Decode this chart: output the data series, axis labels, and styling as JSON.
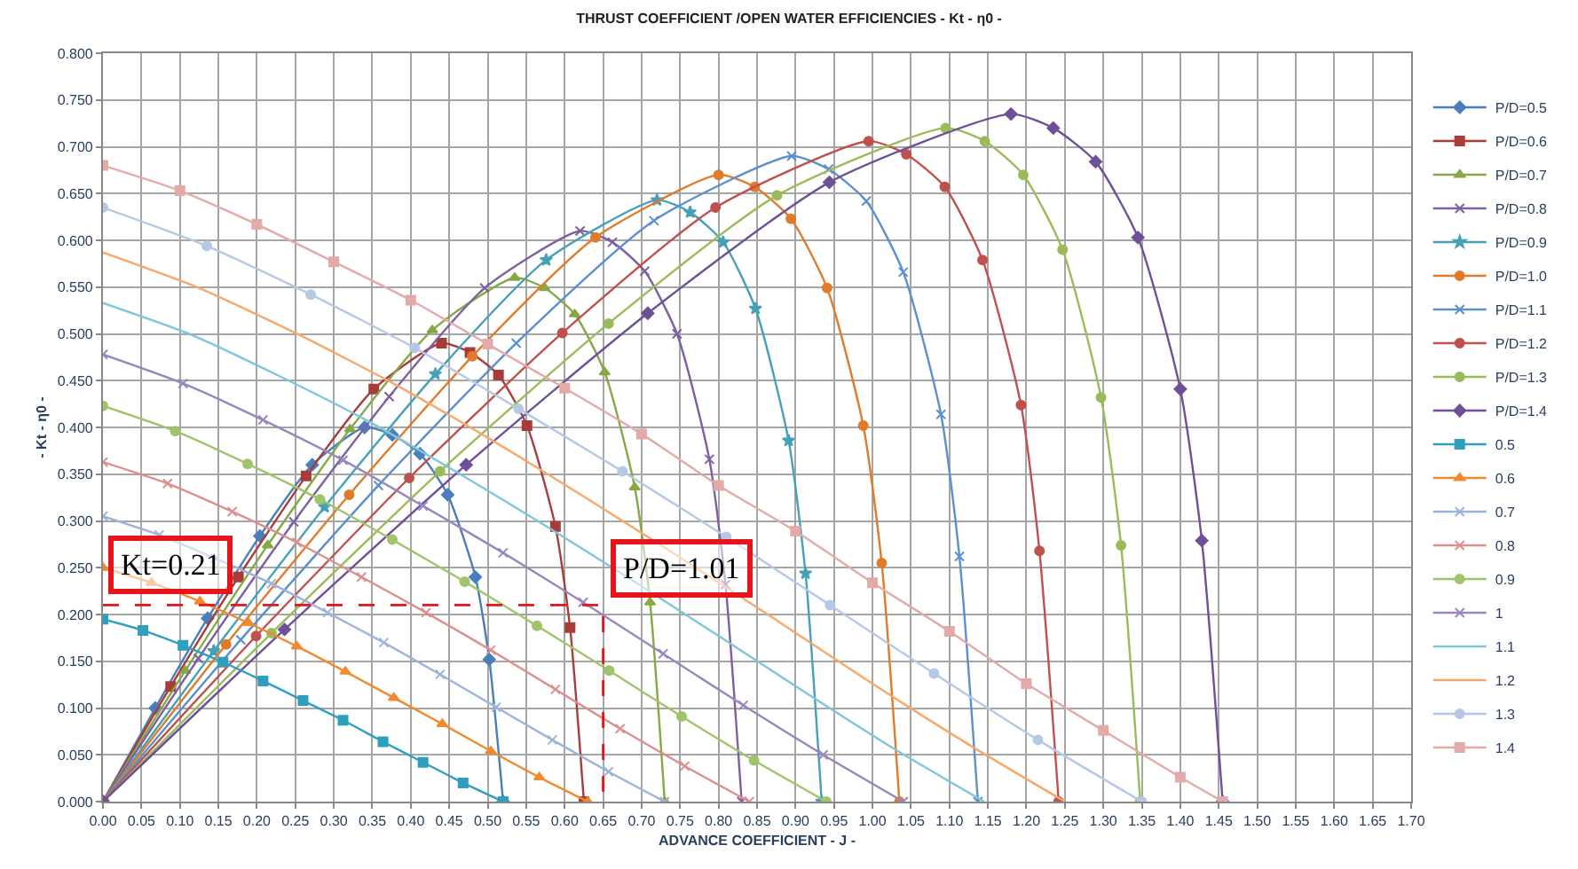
{
  "chart_data": {
    "type": "line",
    "title": "THRUST COEFFICIENT /OPEN WATER EFFICIENCIES - Kt - η0 -",
    "xlabel": "ADVANCE COEFFICIENT - J -",
    "ylabel": "- Kt - η0 -",
    "xlim": [
      0,
      1.7
    ],
    "ylim": [
      0,
      0.8
    ],
    "grid": true,
    "legend": "right",
    "xticks": [
      {
        "value": 0,
        "label": "0.00"
      },
      {
        "value": 0.05,
        "label": "0.05"
      },
      {
        "value": 0.1,
        "label": "0.10"
      },
      {
        "value": 0.15,
        "label": "0.15"
      },
      {
        "value": 0.2,
        "label": "0.20"
      },
      {
        "value": 0.25,
        "label": "0.25"
      },
      {
        "value": 0.3,
        "label": "0.30"
      },
      {
        "value": 0.35,
        "label": "0.35"
      },
      {
        "value": 0.4,
        "label": "0.40"
      },
      {
        "value": 0.45,
        "label": "0.45"
      },
      {
        "value": 0.5,
        "label": "0.50"
      },
      {
        "value": 0.55,
        "label": "0.55"
      },
      {
        "value": 0.6,
        "label": "0.60"
      },
      {
        "value": 0.65,
        "label": "0.65"
      },
      {
        "value": 0.7,
        "label": "0.70"
      },
      {
        "value": 0.75,
        "label": "0.75"
      },
      {
        "value": 0.8,
        "label": "0.80"
      },
      {
        "value": 0.85,
        "label": "0.85"
      },
      {
        "value": 0.9,
        "label": "0.90"
      },
      {
        "value": 0.95,
        "label": "0.95"
      },
      {
        "value": 1.0,
        "label": "1.00"
      },
      {
        "value": 1.05,
        "label": "1.05"
      },
      {
        "value": 1.1,
        "label": "1.10"
      },
      {
        "value": 1.15,
        "label": "1.15"
      },
      {
        "value": 1.2,
        "label": "1.20"
      },
      {
        "value": 1.25,
        "label": "1.25"
      },
      {
        "value": 1.3,
        "label": "1.30"
      },
      {
        "value": 1.35,
        "label": "1.35"
      },
      {
        "value": 1.4,
        "label": "1.40"
      },
      {
        "value": 1.45,
        "label": "1.45"
      },
      {
        "value": 1.5,
        "label": "1.50"
      },
      {
        "value": 1.55,
        "label": "1.55"
      },
      {
        "value": 1.6,
        "label": "1.60"
      },
      {
        "value": 1.65,
        "label": "1.65"
      },
      {
        "value": 1.7,
        "label": "1.70"
      }
    ],
    "yticks": [
      {
        "value": 0,
        "label": "0.000"
      },
      {
        "value": 0.05,
        "label": "0.050"
      },
      {
        "value": 0.1,
        "label": "0.100"
      },
      {
        "value": 0.15,
        "label": "0.150"
      },
      {
        "value": 0.2,
        "label": "0.200"
      },
      {
        "value": 0.25,
        "label": "0.250"
      },
      {
        "value": 0.3,
        "label": "0.300"
      },
      {
        "value": 0.35,
        "label": "0.350"
      },
      {
        "value": 0.4,
        "label": "0.400"
      },
      {
        "value": 0.45,
        "label": "0.450"
      },
      {
        "value": 0.5,
        "label": "0.500"
      },
      {
        "value": 0.55,
        "label": "0.550"
      },
      {
        "value": 0.6,
        "label": "0.600"
      },
      {
        "value": 0.65,
        "label": "0.650"
      },
      {
        "value": 0.7,
        "label": "0.700"
      },
      {
        "value": 0.75,
        "label": "0.750"
      },
      {
        "value": 0.8,
        "label": "0.800"
      }
    ],
    "annotations": [
      {
        "text": "Kt=0.21",
        "x": 0,
        "y": 0.21
      },
      {
        "text": "P/D=1.01",
        "x": 0.65,
        "y": 0.21
      }
    ],
    "series": [
      {
        "name": "P/D=0.5",
        "color": "#4a7ebb",
        "marker": "diamond",
        "x": [
          0,
          0.068,
          0.136,
          0.204,
          0.272,
          0.34,
          0.376,
          0.412,
          0.448,
          0.484,
          0.502,
          0.52
        ],
        "values": [
          0,
          0.1,
          0.196,
          0.284,
          0.36,
          0.4,
          0.392,
          0.372,
          0.328,
          0.24,
          0.152,
          0
        ]
      },
      {
        "name": "P/D=0.6",
        "color": "#a83c3a",
        "marker": "square",
        "x": [
          0,
          0.088,
          0.176,
          0.264,
          0.352,
          0.44,
          0.477,
          0.514,
          0.551,
          0.588,
          0.607,
          0.625
        ],
        "values": [
          0,
          0.123,
          0.24,
          0.348,
          0.441,
          0.49,
          0.48,
          0.456,
          0.402,
          0.294,
          0.186,
          0
        ]
      },
      {
        "name": "P/D=0.7",
        "color": "#86a845",
        "marker": "triangle",
        "x": [
          0,
          0.107,
          0.214,
          0.321,
          0.428,
          0.535,
          0.574,
          0.613,
          0.652,
          0.691,
          0.711,
          0.73
        ],
        "values": [
          0,
          0.14,
          0.274,
          0.398,
          0.504,
          0.56,
          0.549,
          0.521,
          0.459,
          0.336,
          0.213,
          0
        ]
      },
      {
        "name": "P/D=0.8",
        "color": "#7d60a0",
        "marker": "cross",
        "x": [
          0,
          0.124,
          0.248,
          0.372,
          0.496,
          0.62,
          0.662,
          0.704,
          0.746,
          0.788,
          0.809,
          0.83
        ],
        "values": [
          0,
          0.153,
          0.299,
          0.433,
          0.549,
          0.61,
          0.598,
          0.567,
          0.5,
          0.366,
          0.232,
          0
        ]
      },
      {
        "name": "P/D=0.9",
        "color": "#46a0b8",
        "marker": "star",
        "x": [
          0,
          0.144,
          0.288,
          0.432,
          0.576,
          0.72,
          0.763,
          0.806,
          0.848,
          0.891,
          0.913,
          0.934
        ],
        "values": [
          0,
          0.161,
          0.315,
          0.457,
          0.579,
          0.643,
          0.63,
          0.598,
          0.527,
          0.386,
          0.244,
          0
        ]
      },
      {
        "name": "P/D=1.0",
        "color": "#e07b2c",
        "marker": "circle",
        "x": [
          0,
          0.16,
          0.32,
          0.48,
          0.64,
          0.8,
          0.847,
          0.894,
          0.941,
          0.988,
          1.012,
          1.035
        ],
        "values": [
          0,
          0.168,
          0.328,
          0.476,
          0.603,
          0.67,
          0.657,
          0.623,
          0.549,
          0.402,
          0.255,
          0
        ]
      },
      {
        "name": "P/D=1.1",
        "color": "#5b8fd0",
        "marker": "cross",
        "x": [
          0,
          0.179,
          0.358,
          0.537,
          0.716,
          0.895,
          0.943,
          0.992,
          1.04,
          1.089,
          1.113,
          1.137
        ],
        "values": [
          0,
          0.173,
          0.338,
          0.49,
          0.621,
          0.69,
          0.676,
          0.642,
          0.566,
          0.414,
          0.262,
          0
        ]
      },
      {
        "name": "P/D=1.2",
        "color": "#c0504d",
        "marker": "circle",
        "x": [
          0,
          0.199,
          0.398,
          0.597,
          0.796,
          0.995,
          1.044,
          1.094,
          1.143,
          1.193,
          1.217,
          1.242
        ],
        "values": [
          0,
          0.177,
          0.346,
          0.501,
          0.635,
          0.706,
          0.692,
          0.657,
          0.579,
          0.424,
          0.268,
          0
        ]
      },
      {
        "name": "P/D=1.3",
        "color": "#9bbb59",
        "marker": "circle",
        "x": [
          0,
          0.219,
          0.438,
          0.657,
          0.876,
          1.095,
          1.146,
          1.196,
          1.247,
          1.297,
          1.323,
          1.348
        ],
        "values": [
          0,
          0.18,
          0.353,
          0.511,
          0.648,
          0.72,
          0.706,
          0.67,
          0.59,
          0.432,
          0.274,
          0
        ]
      },
      {
        "name": "P/D=1.4",
        "color": "#6f4f98",
        "marker": "diamond",
        "x": [
          0,
          0.236,
          0.472,
          0.708,
          0.944,
          1.18,
          1.235,
          1.29,
          1.345,
          1.4,
          1.428,
          1.455
        ],
        "values": [
          0,
          0.184,
          0.36,
          0.522,
          0.662,
          0.735,
          0.72,
          0.684,
          0.603,
          0.441,
          0.279,
          0
        ]
      },
      {
        "name": "0.5",
        "color": "#2e9fbd",
        "marker": "square",
        "x": [
          0,
          0.052,
          0.104,
          0.156,
          0.208,
          0.26,
          0.312,
          0.364,
          0.416,
          0.468,
          0.52
        ],
        "values": [
          0.195,
          0.183,
          0.167,
          0.149,
          0.129,
          0.108,
          0.087,
          0.064,
          0.042,
          0.02,
          0
        ]
      },
      {
        "name": "0.6",
        "color": "#f08a2c",
        "marker": "triangle",
        "x": [
          0,
          0.063,
          0.126,
          0.189,
          0.252,
          0.315,
          0.378,
          0.441,
          0.504,
          0.567,
          0.63
        ],
        "values": [
          0.25,
          0.234,
          0.214,
          0.191,
          0.166,
          0.139,
          0.111,
          0.083,
          0.054,
          0.026,
          0
        ]
      },
      {
        "name": "0.7",
        "color": "#9db3dd",
        "marker": "cross",
        "x": [
          0,
          0.073,
          0.146,
          0.219,
          0.292,
          0.365,
          0.438,
          0.511,
          0.584,
          0.657,
          0.73
        ],
        "values": [
          0.305,
          0.285,
          0.26,
          0.233,
          0.202,
          0.17,
          0.136,
          0.101,
          0.066,
          0.032,
          0
        ]
      },
      {
        "name": "0.8",
        "color": "#dc8f8c",
        "marker": "cross",
        "x": [
          0,
          0.084,
          0.168,
          0.252,
          0.336,
          0.42,
          0.504,
          0.588,
          0.672,
          0.756,
          0.84
        ],
        "values": [
          0.363,
          0.34,
          0.31,
          0.277,
          0.24,
          0.202,
          0.162,
          0.12,
          0.078,
          0.038,
          0
        ]
      },
      {
        "name": "0.9",
        "color": "#9fc46a",
        "marker": "circle",
        "x": [
          0,
          0.094,
          0.188,
          0.282,
          0.376,
          0.47,
          0.564,
          0.658,
          0.752,
          0.846,
          0.94
        ],
        "values": [
          0.423,
          0.396,
          0.361,
          0.323,
          0.28,
          0.235,
          0.188,
          0.14,
          0.091,
          0.044,
          0
        ]
      },
      {
        "name": "1",
        "color": "#9a86bf",
        "marker": "cross",
        "x": [
          0,
          0.104,
          0.208,
          0.312,
          0.416,
          0.52,
          0.624,
          0.728,
          0.832,
          0.936,
          1.04
        ],
        "values": [
          0.478,
          0.447,
          0.408,
          0.365,
          0.316,
          0.266,
          0.213,
          0.158,
          0.103,
          0.05,
          0
        ]
      },
      {
        "name": "1.1",
        "color": "#7fc6da",
        "marker": "none",
        "x": [
          0,
          0.115,
          0.229,
          0.344,
          0.458,
          0.573,
          0.687,
          0.802,
          0.916,
          1.031,
          1.145
        ],
        "values": [
          0.533,
          0.499,
          0.455,
          0.407,
          0.353,
          0.296,
          0.237,
          0.176,
          0.115,
          0.055,
          0
        ]
      },
      {
        "name": "1.2",
        "color": "#f8a868",
        "marker": "none",
        "x": [
          0,
          0.125,
          0.25,
          0.375,
          0.5,
          0.625,
          0.75,
          0.875,
          1.0,
          1.125,
          1.25
        ],
        "values": [
          0.587,
          0.549,
          0.501,
          0.448,
          0.389,
          0.326,
          0.261,
          0.194,
          0.126,
          0.061,
          0
        ]
      },
      {
        "name": "1.3",
        "color": "#b5c8e6",
        "marker": "circle",
        "x": [
          0,
          0.135,
          0.27,
          0.405,
          0.54,
          0.675,
          0.81,
          0.945,
          1.08,
          1.215,
          1.35
        ],
        "values": [
          0.635,
          0.594,
          0.542,
          0.485,
          0.42,
          0.353,
          0.283,
          0.21,
          0.137,
          0.066,
          0
        ]
      },
      {
        "name": "1.4",
        "color": "#e3aaa7",
        "marker": "square",
        "x": [
          0,
          0.1,
          0.2,
          0.3,
          0.4,
          0.5,
          0.6,
          0.7,
          0.8,
          0.9,
          1.0,
          1.1,
          1.2,
          1.3,
          1.4,
          1.455
        ],
        "values": [
          0.68,
          0.653,
          0.617,
          0.577,
          0.536,
          0.489,
          0.442,
          0.393,
          0.338,
          0.289,
          0.234,
          0.182,
          0.126,
          0.076,
          0.026,
          0
        ]
      },
      {
        "color": "#e8141c",
        "marker": "none",
        "line_style": "dashed",
        "x": [
          0,
          0.65,
          0.65
        ],
        "values": [
          0.21,
          0.21,
          0
        ]
      }
    ]
  }
}
